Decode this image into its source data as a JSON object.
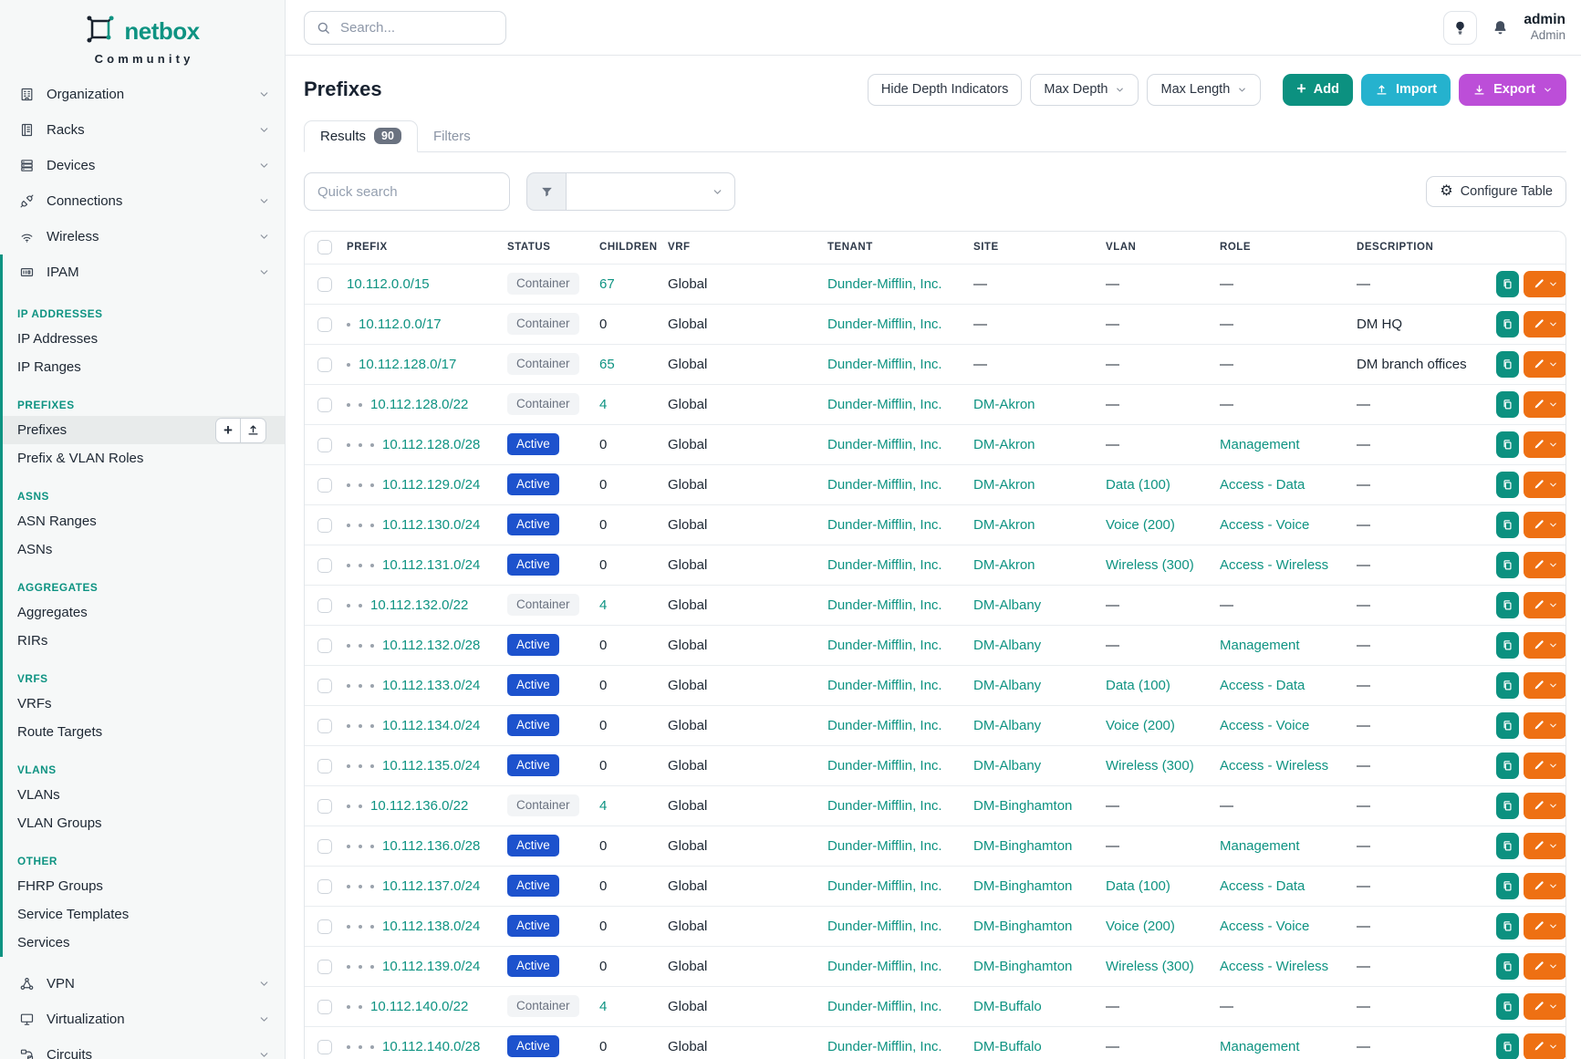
{
  "brand": {
    "logo_icon": "netbox-logo",
    "name": "netbox",
    "subtitle": "Community"
  },
  "topbar": {
    "search_placeholder": "Search...",
    "user": {
      "name": "admin",
      "role": "Admin"
    }
  },
  "sidebar": {
    "main_items": [
      {
        "label": "Organization",
        "icon": "building-icon"
      },
      {
        "label": "Racks",
        "icon": "rack-icon"
      },
      {
        "label": "Devices",
        "icon": "server-icon"
      },
      {
        "label": "Connections",
        "icon": "plug-icon"
      },
      {
        "label": "Wireless",
        "icon": "wifi-icon"
      }
    ],
    "ipam": {
      "label": "IPAM",
      "icon": "ipam-icon",
      "groups": [
        {
          "header": "IP ADDRESSES",
          "items": [
            {
              "label": "IP Addresses"
            },
            {
              "label": "IP Ranges"
            }
          ]
        },
        {
          "header": "PREFIXES",
          "items": [
            {
              "label": "Prefixes",
              "active": true,
              "quick_buttons": [
                "add",
                "import"
              ]
            },
            {
              "label": "Prefix & VLAN Roles"
            }
          ]
        },
        {
          "header": "ASNS",
          "items": [
            {
              "label": "ASN Ranges"
            },
            {
              "label": "ASNs"
            }
          ]
        },
        {
          "header": "AGGREGATES",
          "items": [
            {
              "label": "Aggregates"
            },
            {
              "label": "RIRs"
            }
          ]
        },
        {
          "header": "VRFS",
          "items": [
            {
              "label": "VRFs"
            },
            {
              "label": "Route Targets"
            }
          ]
        },
        {
          "header": "VLANS",
          "items": [
            {
              "label": "VLANs"
            },
            {
              "label": "VLAN Groups"
            }
          ]
        },
        {
          "header": "OTHER",
          "items": [
            {
              "label": "FHRP Groups"
            },
            {
              "label": "Service Templates"
            },
            {
              "label": "Services"
            }
          ]
        }
      ]
    },
    "bottom_items": [
      {
        "label": "VPN",
        "icon": "vpn-icon"
      },
      {
        "label": "Virtualization",
        "icon": "monitor-icon"
      },
      {
        "label": "Circuits",
        "icon": "circuit-icon"
      }
    ]
  },
  "page": {
    "title": "Prefixes",
    "toolbar": [
      {
        "label": "Hide Depth Indicators",
        "style": "outline"
      },
      {
        "label": "Max Depth",
        "style": "outline",
        "chevron": true
      },
      {
        "label": "Max Length",
        "style": "outline",
        "chevron": true
      },
      {
        "label": "Add",
        "style": "add",
        "icon": "plus-icon"
      },
      {
        "label": "Import",
        "style": "import",
        "icon": "upload-icon"
      },
      {
        "label": "Export",
        "style": "export",
        "icon": "download-icon",
        "chevron": true
      }
    ],
    "tabs": [
      {
        "label": "Results",
        "badge": "90",
        "active": true
      },
      {
        "label": "Filters",
        "active": false
      }
    ],
    "quick_search_placeholder": "Quick search",
    "configure_table_label": "Configure Table"
  },
  "table": {
    "columns": [
      "PREFIX",
      "STATUS",
      "CHILDREN",
      "VRF",
      "TENANT",
      "SITE",
      "VLAN",
      "ROLE",
      "DESCRIPTION"
    ],
    "rows": [
      {
        "depth": 0,
        "prefix": "10.112.0.0/15",
        "status": "Container",
        "children": "67",
        "vrf": "Global",
        "tenant": "Dunder-Mifflin, Inc.",
        "site": "—",
        "vlan": "—",
        "role": "—",
        "description": "—"
      },
      {
        "depth": 1,
        "prefix": "10.112.0.0/17",
        "status": "Container",
        "children": "0",
        "vrf": "Global",
        "tenant": "Dunder-Mifflin, Inc.",
        "site": "—",
        "vlan": "—",
        "role": "—",
        "description": "DM HQ"
      },
      {
        "depth": 1,
        "prefix": "10.112.128.0/17",
        "status": "Container",
        "children": "65",
        "vrf": "Global",
        "tenant": "Dunder-Mifflin, Inc.",
        "site": "—",
        "vlan": "—",
        "role": "—",
        "description": "DM branch offices"
      },
      {
        "depth": 2,
        "prefix": "10.112.128.0/22",
        "status": "Container",
        "children": "4",
        "vrf": "Global",
        "tenant": "Dunder-Mifflin, Inc.",
        "site": "DM-Akron",
        "vlan": "—",
        "role": "—",
        "description": "—"
      },
      {
        "depth": 3,
        "prefix": "10.112.128.0/28",
        "status": "Active",
        "children": "0",
        "vrf": "Global",
        "tenant": "Dunder-Mifflin, Inc.",
        "site": "DM-Akron",
        "vlan": "—",
        "role": "Management",
        "description": "—"
      },
      {
        "depth": 3,
        "prefix": "10.112.129.0/24",
        "status": "Active",
        "children": "0",
        "vrf": "Global",
        "tenant": "Dunder-Mifflin, Inc.",
        "site": "DM-Akron",
        "vlan": "Data (100)",
        "role": "Access - Data",
        "description": "—"
      },
      {
        "depth": 3,
        "prefix": "10.112.130.0/24",
        "status": "Active",
        "children": "0",
        "vrf": "Global",
        "tenant": "Dunder-Mifflin, Inc.",
        "site": "DM-Akron",
        "vlan": "Voice (200)",
        "role": "Access - Voice",
        "description": "—"
      },
      {
        "depth": 3,
        "prefix": "10.112.131.0/24",
        "status": "Active",
        "children": "0",
        "vrf": "Global",
        "tenant": "Dunder-Mifflin, Inc.",
        "site": "DM-Akron",
        "vlan": "Wireless (300)",
        "role": "Access - Wireless",
        "description": "—"
      },
      {
        "depth": 2,
        "prefix": "10.112.132.0/22",
        "status": "Container",
        "children": "4",
        "vrf": "Global",
        "tenant": "Dunder-Mifflin, Inc.",
        "site": "DM-Albany",
        "vlan": "—",
        "role": "—",
        "description": "—"
      },
      {
        "depth": 3,
        "prefix": "10.112.132.0/28",
        "status": "Active",
        "children": "0",
        "vrf": "Global",
        "tenant": "Dunder-Mifflin, Inc.",
        "site": "DM-Albany",
        "vlan": "—",
        "role": "Management",
        "description": "—"
      },
      {
        "depth": 3,
        "prefix": "10.112.133.0/24",
        "status": "Active",
        "children": "0",
        "vrf": "Global",
        "tenant": "Dunder-Mifflin, Inc.",
        "site": "DM-Albany",
        "vlan": "Data (100)",
        "role": "Access - Data",
        "description": "—"
      },
      {
        "depth": 3,
        "prefix": "10.112.134.0/24",
        "status": "Active",
        "children": "0",
        "vrf": "Global",
        "tenant": "Dunder-Mifflin, Inc.",
        "site": "DM-Albany",
        "vlan": "Voice (200)",
        "role": "Access - Voice",
        "description": "—"
      },
      {
        "depth": 3,
        "prefix": "10.112.135.0/24",
        "status": "Active",
        "children": "0",
        "vrf": "Global",
        "tenant": "Dunder-Mifflin, Inc.",
        "site": "DM-Albany",
        "vlan": "Wireless (300)",
        "role": "Access - Wireless",
        "description": "—"
      },
      {
        "depth": 2,
        "prefix": "10.112.136.0/22",
        "status": "Container",
        "children": "4",
        "vrf": "Global",
        "tenant": "Dunder-Mifflin, Inc.",
        "site": "DM-Binghamton",
        "vlan": "—",
        "role": "—",
        "description": "—"
      },
      {
        "depth": 3,
        "prefix": "10.112.136.0/28",
        "status": "Active",
        "children": "0",
        "vrf": "Global",
        "tenant": "Dunder-Mifflin, Inc.",
        "site": "DM-Binghamton",
        "vlan": "—",
        "role": "Management",
        "description": "—"
      },
      {
        "depth": 3,
        "prefix": "10.112.137.0/24",
        "status": "Active",
        "children": "0",
        "vrf": "Global",
        "tenant": "Dunder-Mifflin, Inc.",
        "site": "DM-Binghamton",
        "vlan": "Data (100)",
        "role": "Access - Data",
        "description": "—"
      },
      {
        "depth": 3,
        "prefix": "10.112.138.0/24",
        "status": "Active",
        "children": "0",
        "vrf": "Global",
        "tenant": "Dunder-Mifflin, Inc.",
        "site": "DM-Binghamton",
        "vlan": "Voice (200)",
        "role": "Access - Voice",
        "description": "—"
      },
      {
        "depth": 3,
        "prefix": "10.112.139.0/24",
        "status": "Active",
        "children": "0",
        "vrf": "Global",
        "tenant": "Dunder-Mifflin, Inc.",
        "site": "DM-Binghamton",
        "vlan": "Wireless (300)",
        "role": "Access - Wireless",
        "description": "—"
      },
      {
        "depth": 2,
        "prefix": "10.112.140.0/22",
        "status": "Container",
        "children": "4",
        "vrf": "Global",
        "tenant": "Dunder-Mifflin, Inc.",
        "site": "DM-Buffalo",
        "vlan": "—",
        "role": "—",
        "description": "—"
      },
      {
        "depth": 3,
        "prefix": "10.112.140.0/28",
        "status": "Active",
        "children": "0",
        "vrf": "Global",
        "tenant": "Dunder-Mifflin, Inc.",
        "site": "DM-Buffalo",
        "vlan": "—",
        "role": "Management",
        "description": "—"
      }
    ]
  },
  "colors": {
    "brand_teal": "#0e9382",
    "link_teal": "#0e9382",
    "active_badge_blue": "#1d52cd",
    "container_badge_bg": "#f2f4f6",
    "add_button": "#0c9180",
    "import_button": "#25b2ce",
    "export_button": "#bc4ed8",
    "edit_button_orange": "#ee7013",
    "sidebar_bg": "#f6f8f8"
  }
}
